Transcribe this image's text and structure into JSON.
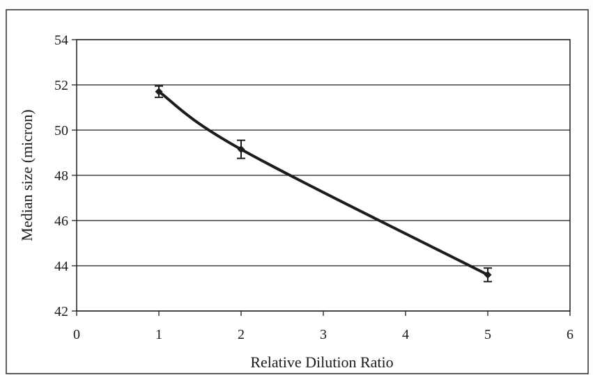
{
  "chart_data": {
    "type": "line",
    "title": "",
    "xlabel": "Relative Dilution Ratio",
    "ylabel": "Median size (micron)",
    "xlim": [
      0,
      6
    ],
    "ylim": [
      42,
      54
    ],
    "x_ticks": [
      "0",
      "1",
      "2",
      "3",
      "4",
      "5",
      "6"
    ],
    "y_ticks": [
      "42",
      "44",
      "46",
      "48",
      "50",
      "52",
      "54"
    ],
    "grid": "horizontal",
    "legend": "none",
    "line_style": "smoothed",
    "marker": "diamond",
    "colors": {
      "line": "#1c1c1c",
      "grid": "#1c1c1c",
      "plot_background": "#ffffff"
    },
    "series": [
      {
        "x": [
          1,
          2,
          5
        ],
        "y": [
          51.7,
          49.15,
          43.6
        ],
        "error": [
          0.25,
          0.4,
          0.3
        ]
      }
    ]
  }
}
